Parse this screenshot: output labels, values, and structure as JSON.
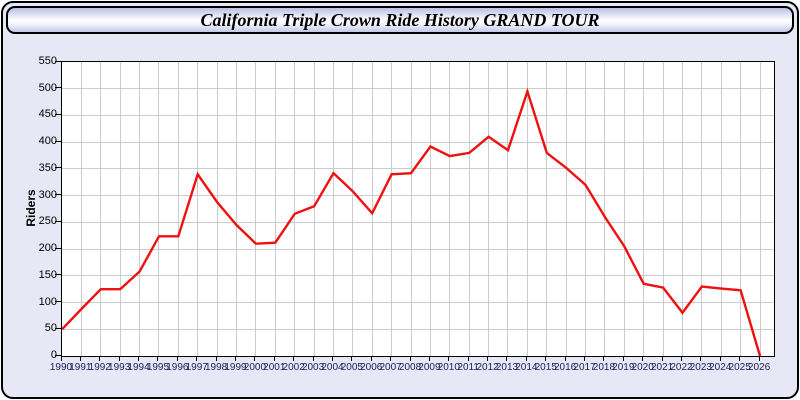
{
  "window": {
    "title": "California Triple Crown Ride History GRAND TOUR"
  },
  "colors": {
    "line": "#ee1111",
    "plot_bg": "#ffffff",
    "grid": "#cccccc",
    "frame": "#000000",
    "body_bg": "#e7e7f6",
    "x_label": "#222255",
    "y_label": "#000000"
  },
  "chart_data": {
    "type": "line",
    "title": "California Triple Crown Ride History GRAND TOUR",
    "xlabel": "",
    "ylabel": "Riders",
    "grid": true,
    "legend_position": "none",
    "ylim": [
      0,
      550
    ],
    "y_tick_step": 50,
    "x": [
      1990,
      1991,
      1992,
      1993,
      1994,
      1995,
      1996,
      1997,
      1998,
      1999,
      2000,
      2001,
      2002,
      2003,
      2004,
      2005,
      2006,
      2007,
      2008,
      2009,
      2010,
      2011,
      2012,
      2013,
      2014,
      2015,
      2016,
      2017,
      2018,
      2019,
      2020,
      2021,
      2022,
      2023,
      2024,
      2025,
      2026
    ],
    "series": [
      {
        "name": "Riders",
        "color": "#ee1111",
        "values": [
          50,
          88,
          125,
          125,
          158,
          224,
          224,
          340,
          288,
          245,
          210,
          212,
          266,
          280,
          342,
          308,
          267,
          340,
          342,
          392,
          374,
          380,
          410,
          385,
          495,
          380,
          352,
          320,
          260,
          205,
          135,
          128,
          81,
          130,
          126,
          123,
          0
        ]
      }
    ]
  }
}
